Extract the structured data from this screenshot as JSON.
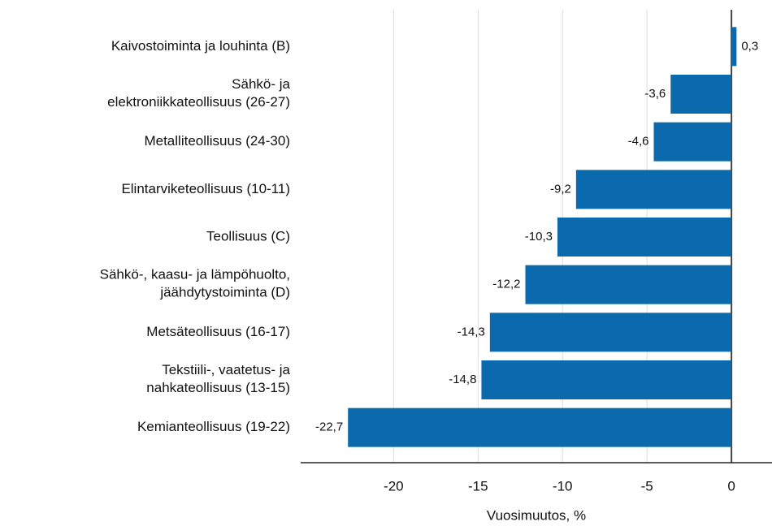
{
  "chart_data": {
    "type": "hbar",
    "categories": [
      "Kaivostoiminta ja louhinta (B)",
      "Sähkö- ja\nelektroniikkateollisuus (26-27)",
      "Metalliteollisuus (24-30)",
      "Elintarviketeollisuus (10-11)",
      "Teollisuus (C)",
      "Sähkö-, kaasu- ja lämpöhuolto,\njäähdytystoiminta (D)",
      "Metsäteollisuus (16-17)",
      "Tekstiili-, vaatetus- ja\nnahkateollisuus (13-15)",
      "Kemianteollisuus (19-22)"
    ],
    "values": [
      0.3,
      -3.6,
      -4.6,
      -9.2,
      -10.3,
      -12.2,
      -14.3,
      -14.8,
      -22.7
    ],
    "value_labels": [
      "0,3",
      "-3,6",
      "-4,6",
      "-9,2",
      "-10,3",
      "-12,2",
      "-14,3",
      "-14,8",
      "-22,7"
    ],
    "color": "#0a6aad",
    "xlim": [
      -25.5,
      2.4
    ],
    "xticks": [
      -20,
      -15,
      -10,
      -5,
      0
    ],
    "xlabel": "Vuosimuutos, %",
    "grid": true
  }
}
